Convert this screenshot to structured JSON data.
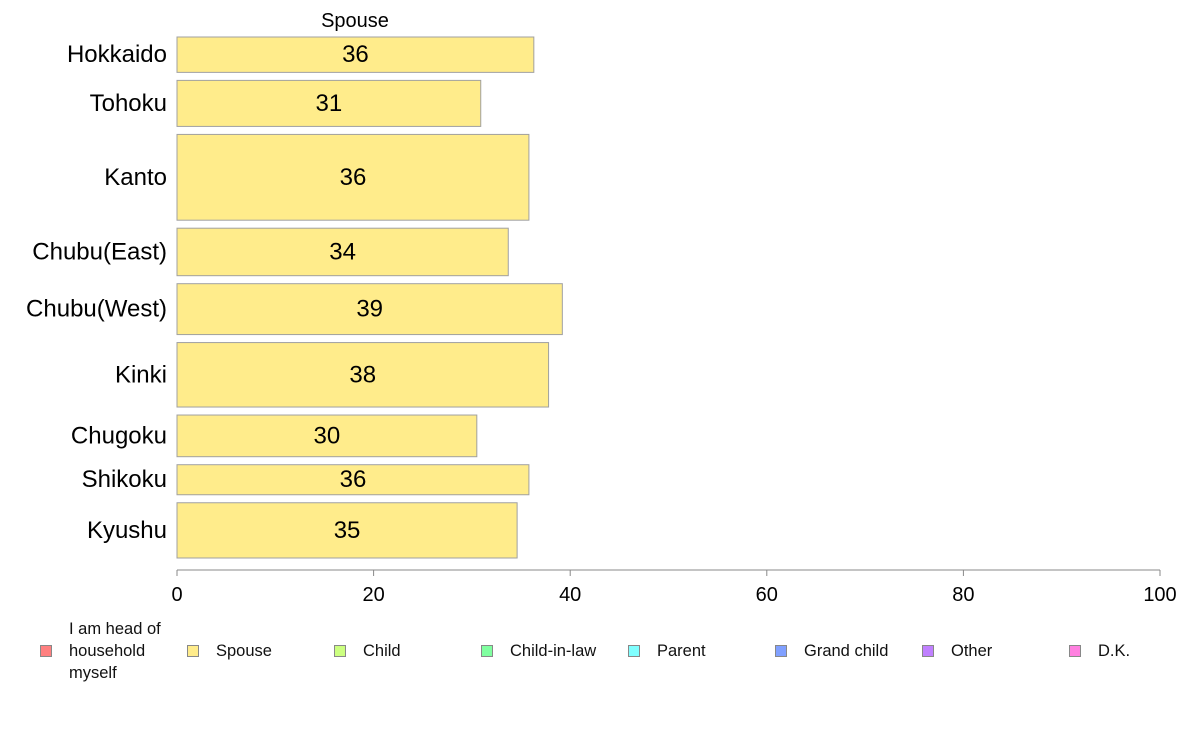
{
  "chart_data": {
    "type": "bar",
    "orientation": "horizontal",
    "panel_title": "Spouse",
    "categories": [
      "Hokkaido",
      "Tohoku",
      "Kanto",
      "Chubu(East)",
      "Chubu(West)",
      "Kinki",
      "Chugoku",
      "Shikoku",
      "Kyushu"
    ],
    "values": [
      36.3,
      30.9,
      35.8,
      33.7,
      39.2,
      37.8,
      30.5,
      35.8,
      34.6
    ],
    "data_labels": [
      "36",
      "31",
      "36",
      "34",
      "39",
      "38",
      "30",
      "36",
      "35"
    ],
    "bar_thickness_weights": [
      0.73,
      0.95,
      1.77,
      0.98,
      1.05,
      1.33,
      0.86,
      0.62,
      1.14
    ],
    "bar_color": "#ffec8b",
    "bar_border_color": "#a0a0a0",
    "xlim": [
      0,
      100
    ],
    "xticks": [
      "0",
      "20",
      "40",
      "60",
      "80",
      "100"
    ],
    "xtick_values": [
      0,
      20,
      40,
      60,
      80,
      100
    ],
    "grid": false,
    "legend_position": "bottom"
  },
  "legend": [
    {
      "label": "I am head of household myself",
      "color": "#ff8080"
    },
    {
      "label": "Spouse",
      "color": "#ffec8b"
    },
    {
      "label": "Child",
      "color": "#ccff80"
    },
    {
      "label": "Child-in-law",
      "color": "#80ffa0"
    },
    {
      "label": "Parent",
      "color": "#80ffff"
    },
    {
      "label": "Grand child",
      "color": "#80a0ff"
    },
    {
      "label": "Other",
      "color": "#c080ff"
    },
    {
      "label": "D.K.",
      "color": "#ff80e0"
    }
  ]
}
